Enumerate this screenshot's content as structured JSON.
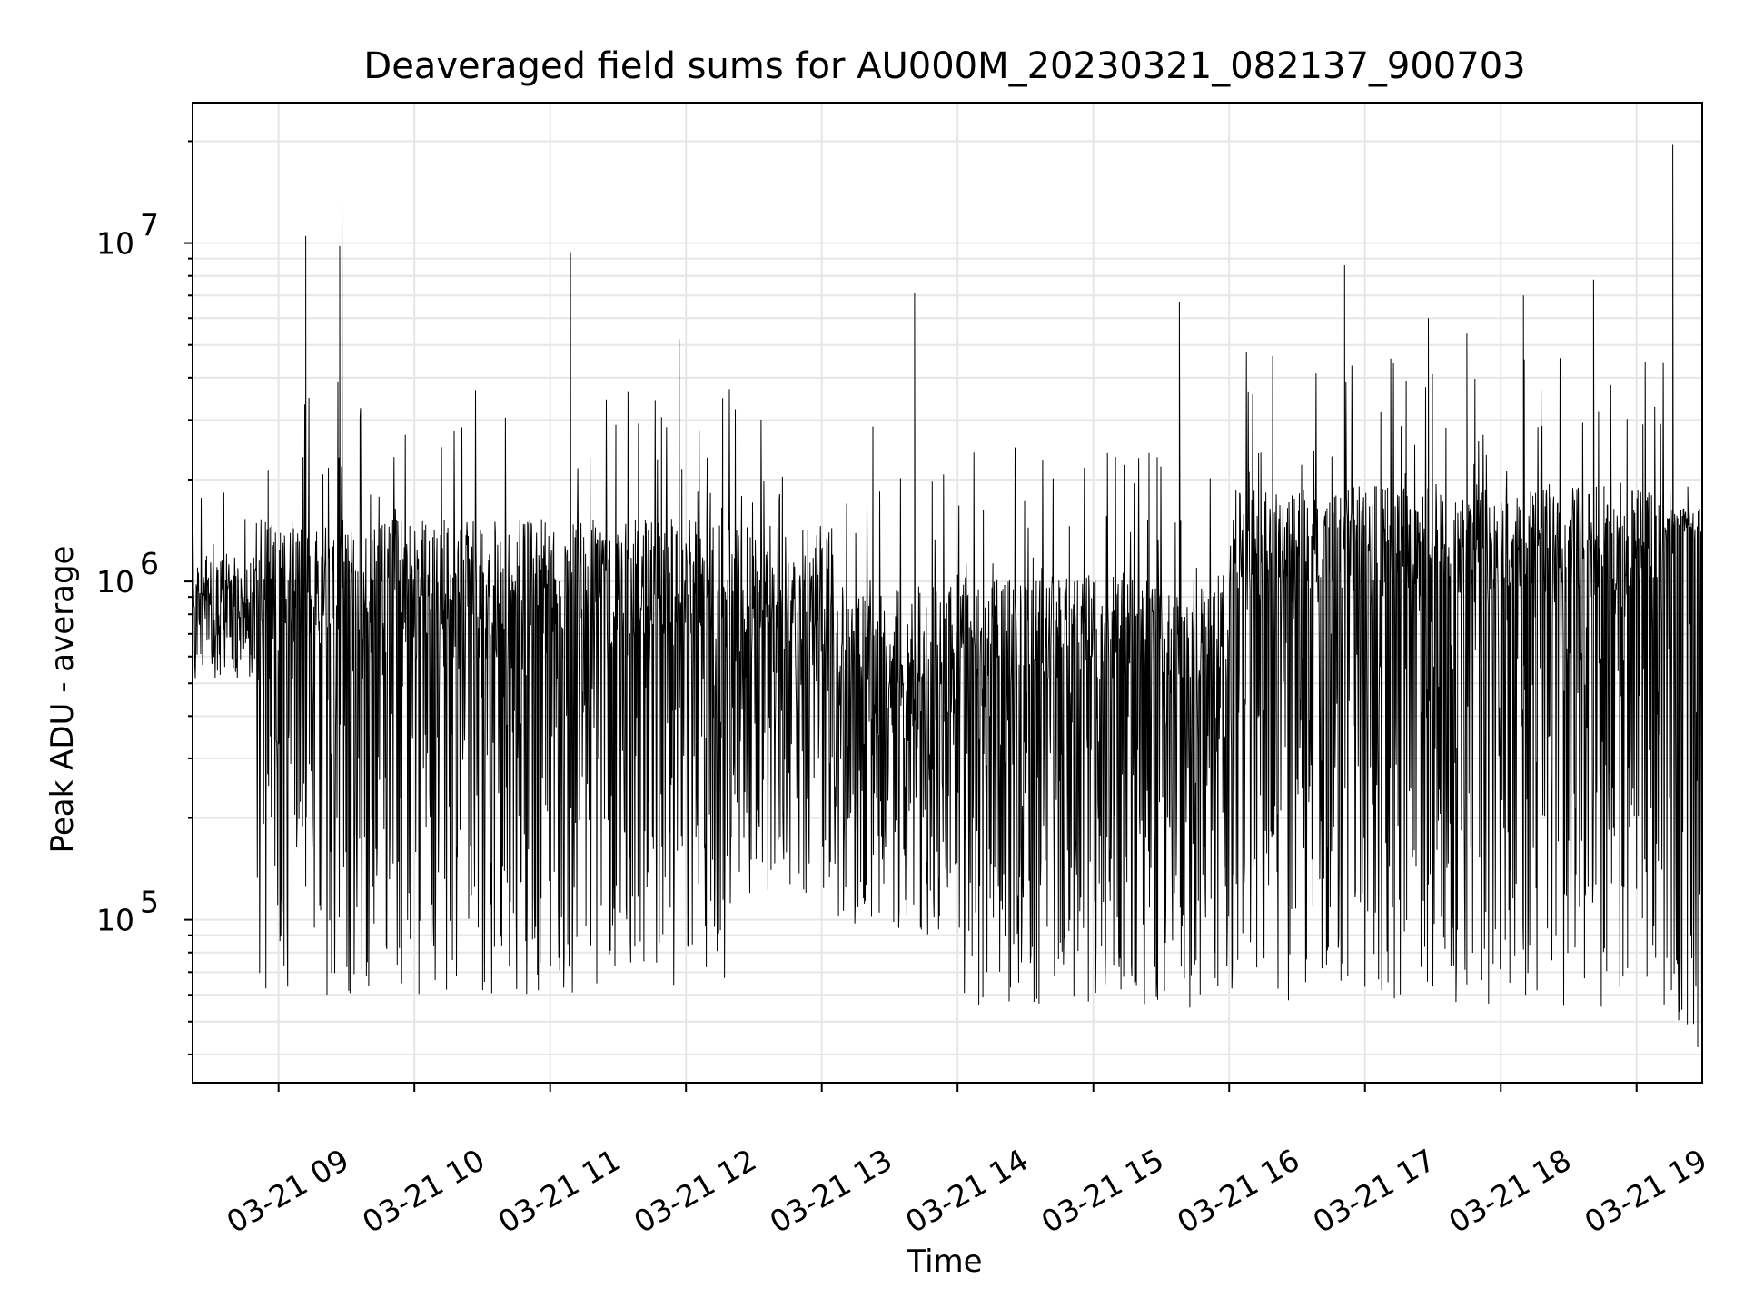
{
  "chart_data": {
    "type": "line",
    "title": "Deaveraged field sums for AU000M_20230321_082137_900703",
    "xlabel": "Time",
    "ylabel": "Peak ADU - average",
    "y_scale": "log",
    "ylim": [
      33000,
      26000000
    ],
    "xlim": [
      "2023-03-21 08:22",
      "2023-03-21 19:29"
    ],
    "x_ticks": [
      {
        "value": "2023-03-21 09:00",
        "label": "03-21 09"
      },
      {
        "value": "2023-03-21 10:00",
        "label": "03-21 10"
      },
      {
        "value": "2023-03-21 11:00",
        "label": "03-21 11"
      },
      {
        "value": "2023-03-21 12:00",
        "label": "03-21 12"
      },
      {
        "value": "2023-03-21 13:00",
        "label": "03-21 13"
      },
      {
        "value": "2023-03-21 14:00",
        "label": "03-21 14"
      },
      {
        "value": "2023-03-21 15:00",
        "label": "03-21 15"
      },
      {
        "value": "2023-03-21 16:00",
        "label": "03-21 16"
      },
      {
        "value": "2023-03-21 17:00",
        "label": "03-21 17"
      },
      {
        "value": "2023-03-21 18:00",
        "label": "03-21 18"
      },
      {
        "value": "2023-03-21 19:00",
        "label": "03-21 19"
      }
    ],
    "y_ticks": [
      {
        "value": 100000,
        "base": "10",
        "exp": "5"
      },
      {
        "value": 1000000,
        "base": "10",
        "exp": "6"
      },
      {
        "value": 10000000,
        "base": "10",
        "exp": "7"
      }
    ],
    "grid": true,
    "line_color": "#000000",
    "spikes": [
      {
        "x": "2023-03-21 09:12",
        "y": 10500000
      },
      {
        "x": "2023-03-21 09:28",
        "y": 14000000
      },
      {
        "x": "2023-03-21 09:27",
        "y": 9800000
      },
      {
        "x": "2023-03-21 11:09",
        "y": 9400000
      },
      {
        "x": "2023-03-21 11:57",
        "y": 5200000
      },
      {
        "x": "2023-03-21 13:41",
        "y": 7100000
      },
      {
        "x": "2023-03-21 15:38",
        "y": 6700000
      },
      {
        "x": "2023-03-21 16:51",
        "y": 8600000
      },
      {
        "x": "2023-03-21 17:28",
        "y": 6000000
      },
      {
        "x": "2023-03-21 17:45",
        "y": 5400000
      },
      {
        "x": "2023-03-21 18:10",
        "y": 7000000
      },
      {
        "x": "2023-03-21 18:41",
        "y": 7800000
      },
      {
        "x": "2023-03-21 19:16",
        "y": 19500000
      },
      {
        "x": "2023-03-21 19:27",
        "y": 42000
      }
    ],
    "segments": [
      {
        "start": "2023-03-21 08:22",
        "end": "2023-03-21 08:50",
        "median": 800000,
        "low": 500000,
        "high": 2000000
      },
      {
        "start": "2023-03-21 08:50",
        "end": "2023-03-21 12:20",
        "median": 700000,
        "low": 60000,
        "high": 4000000
      },
      {
        "start": "2023-03-21 12:20",
        "end": "2023-03-21 13:05",
        "median": 700000,
        "low": 120000,
        "high": 3600000
      },
      {
        "start": "2023-03-21 13:05",
        "end": "2023-03-21 14:00",
        "median": 350000,
        "low": 90000,
        "high": 3400000
      },
      {
        "start": "2023-03-21 14:00",
        "end": "2023-03-21 16:00",
        "median": 500000,
        "low": 55000,
        "high": 2600000
      },
      {
        "start": "2023-03-21 16:00",
        "end": "2023-03-21 19:12",
        "median": 900000,
        "low": 55000,
        "high": 4800000
      },
      {
        "start": "2023-03-21 19:12",
        "end": "2023-03-21 19:29",
        "median": 1400000,
        "low": 45000,
        "high": 2000000
      }
    ]
  }
}
